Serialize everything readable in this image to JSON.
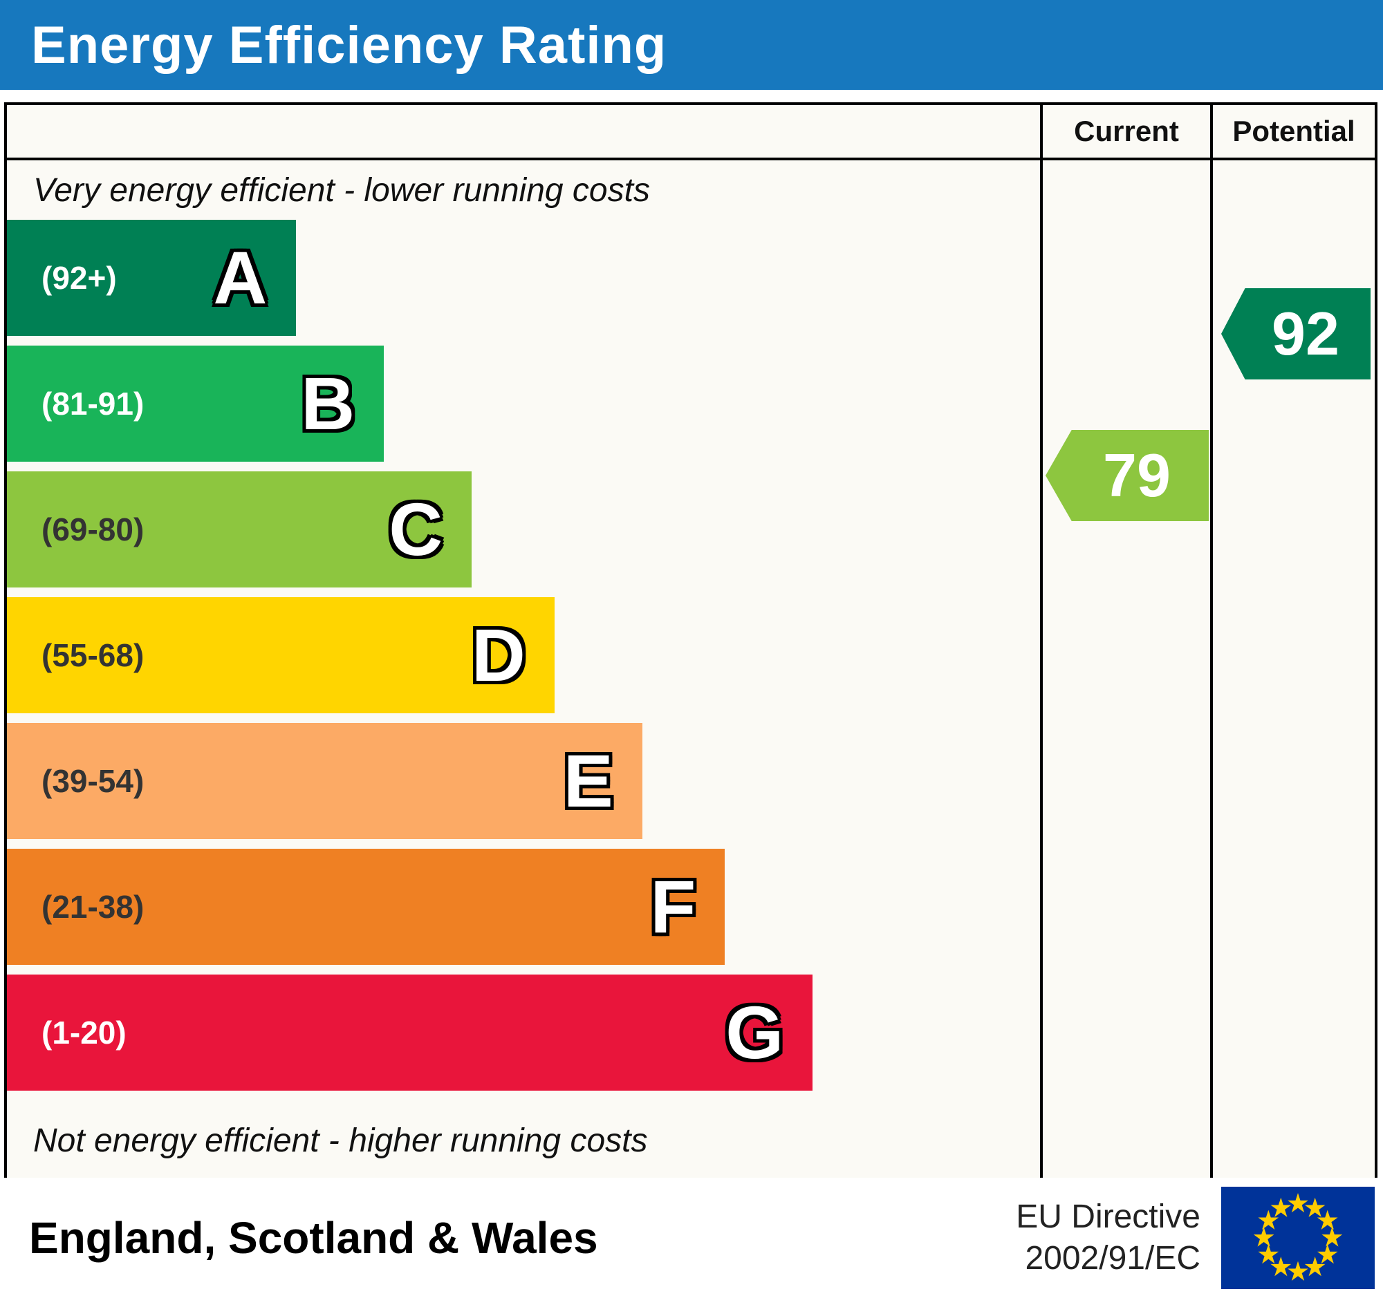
{
  "colors": {
    "header_bg": "#1778be",
    "frame_bg": "#fbfaf5",
    "border": "#000000",
    "eu_flag_blue": "#003399",
    "eu_flag_star": "#ffcc00"
  },
  "header": {
    "title": "Energy Efficiency Rating"
  },
  "columns": {
    "current": "Current",
    "potential": "Potential"
  },
  "captions": {
    "top": "Very energy efficient - lower running costs",
    "bottom": "Not energy efficient - higher running costs"
  },
  "bands": [
    {
      "letter": "A",
      "range": "(92+)",
      "color": "#008054",
      "width_pct": 28,
      "label_color": "#ffffff"
    },
    {
      "letter": "B",
      "range": "(81-91)",
      "color": "#19b459",
      "width_pct": 36.5,
      "label_color": "#ffffff"
    },
    {
      "letter": "C",
      "range": "(69-80)",
      "color": "#8dc63f",
      "width_pct": 45,
      "label_color": "#333333"
    },
    {
      "letter": "D",
      "range": "(55-68)",
      "color": "#ffd500",
      "width_pct": 53,
      "label_color": "#333333"
    },
    {
      "letter": "E",
      "range": "(39-54)",
      "color": "#fcaa65",
      "width_pct": 61.5,
      "label_color": "#333333"
    },
    {
      "letter": "F",
      "range": "(21-38)",
      "color": "#ef8023",
      "width_pct": 69.5,
      "label_color": "#333333"
    },
    {
      "letter": "G",
      "range": "(1-20)",
      "color": "#e9153b",
      "width_pct": 78,
      "label_color": "#ffffff"
    }
  ],
  "ratings": {
    "current": {
      "value": "79",
      "color": "#8dc63f"
    },
    "potential": {
      "value": "92",
      "color": "#008054"
    }
  },
  "footer": {
    "region": "England, Scotland & Wales",
    "directive_line1": "EU Directive",
    "directive_line2": "2002/91/EC"
  },
  "icons": {
    "eu_flag": "eu-flag-icon"
  },
  "chart_data": {
    "type": "bar",
    "title": "Energy Efficiency Rating",
    "categories": [
      "A",
      "B",
      "C",
      "D",
      "E",
      "F",
      "G"
    ],
    "ranges": [
      "92+",
      "81-91",
      "69-80",
      "55-68",
      "39-54",
      "21-38",
      "1-20"
    ],
    "band_colors": [
      "#008054",
      "#19b459",
      "#8dc63f",
      "#ffd500",
      "#fcaa65",
      "#ef8023",
      "#e9153b"
    ],
    "relative_bar_widths_pct": [
      28,
      36.5,
      45,
      53,
      61.5,
      69.5,
      78
    ],
    "current": 79,
    "potential": 92,
    "current_band": "C",
    "potential_band": "A",
    "top_caption": "Very energy efficient - lower running costs",
    "bottom_caption": "Not energy efficient - higher running costs",
    "region": "England, Scotland & Wales",
    "directive": "EU Directive 2002/91/EC"
  }
}
